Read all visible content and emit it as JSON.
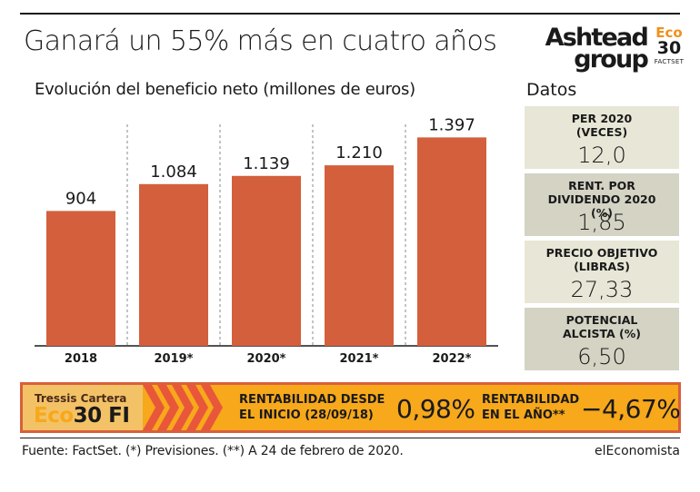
{
  "title": "Ganará un 55% más en cuatro años",
  "brand": {
    "line1": "Ashtead",
    "line2": "group",
    "badge_eco": "Eco",
    "badge_30": "30",
    "badge_src": "FACTSET"
  },
  "colors": {
    "bar": "#d35f3d",
    "panel_light": "#e8e6d6",
    "panel_dark": "#d4d3c4",
    "strip": "#f7a81b",
    "strip_border": "#d95f3b"
  },
  "chart_data": {
    "type": "bar",
    "title": "Evolución del beneficio neto (millones de euros)",
    "categories": [
      "2018",
      "2019*",
      "2020*",
      "2021*",
      "2022*"
    ],
    "values": [
      904,
      1084,
      1139,
      1210,
      1397
    ],
    "value_labels": [
      "904",
      "1.084",
      "1.139",
      "1.210",
      "1.397"
    ],
    "ylim": [
      0,
      1600
    ],
    "grid": false,
    "separators": "dashed vertical lines between categories"
  },
  "datos": {
    "heading": "Datos",
    "items": [
      {
        "label": "PER 2020 (VECES)",
        "value": "12,0"
      },
      {
        "label": "RENT. POR DIVIDENDO 2020 (%)",
        "value": "1,85"
      },
      {
        "label": "PRECIO OBJETIVO (LIBRAS)",
        "value": "27,33"
      },
      {
        "label": "POTENCIAL ALCISTA (%)",
        "value": "6,50"
      }
    ]
  },
  "tressis": {
    "line1": "Tressis Cartera",
    "eco": "Eco",
    "rest": "30 FI",
    "since_label_1": "RENTABILIDAD DESDE",
    "since_label_2": "EL INICIO (28/09/18)",
    "since_value": "0,98%",
    "year_label_1": "RENTABILIDAD",
    "year_label_2": "EN EL AÑO**",
    "year_value": "−4,67%"
  },
  "footer": {
    "source": "Fuente: FactSet. (*) Previsiones. (**) A 24 de febrero de 2020.",
    "media": "elEconomista"
  }
}
